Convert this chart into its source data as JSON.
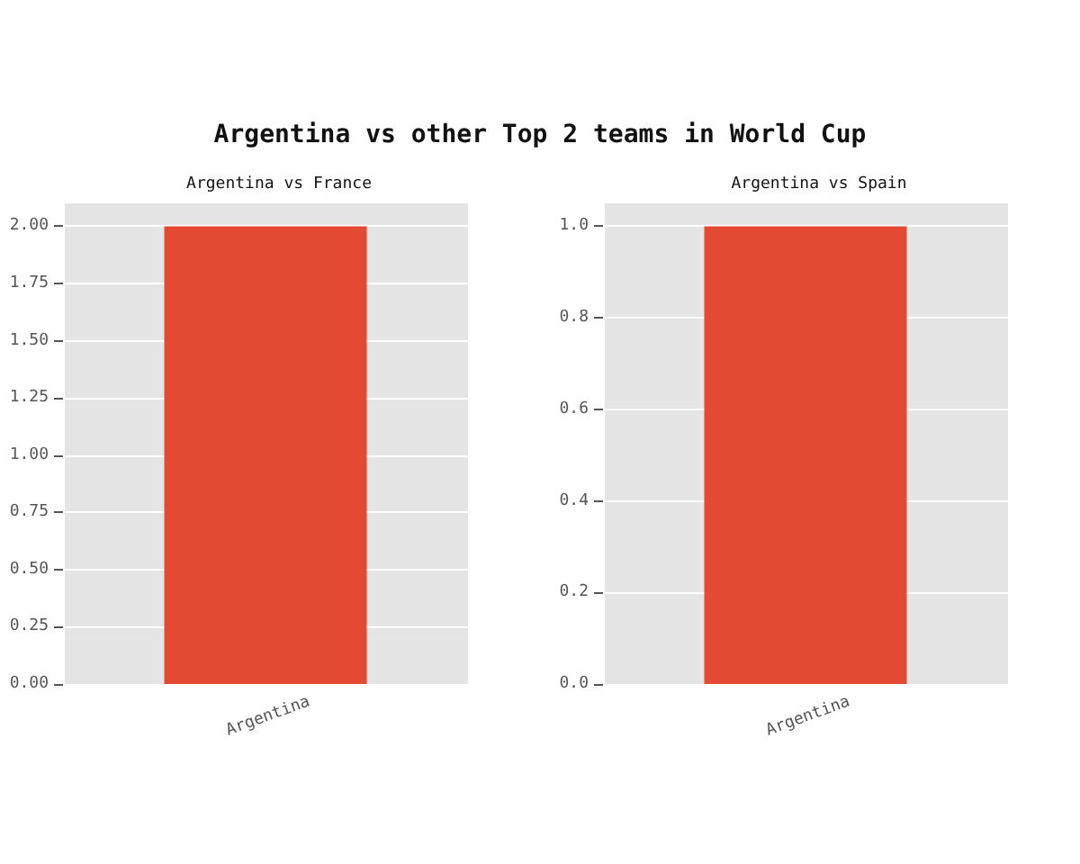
{
  "chart_data": [
    {
      "type": "bar",
      "title": "Argentina vs France",
      "categories": [
        "Argentina"
      ],
      "values": [
        2
      ],
      "color": "#e24a33",
      "ylim": [
        0,
        2.1
      ],
      "yticks": [
        {
          "value": 0,
          "label": "0.00"
        },
        {
          "value": 0.25,
          "label": "0.25"
        },
        {
          "value": 0.5,
          "label": "0.50"
        },
        {
          "value": 0.75,
          "label": "0.75"
        },
        {
          "value": 1,
          "label": "1.00"
        },
        {
          "value": 1.25,
          "label": "1.25"
        },
        {
          "value": 1.5,
          "label": "1.50"
        },
        {
          "value": 1.75,
          "label": "1.75"
        },
        {
          "value": 2,
          "label": "2.00"
        }
      ],
      "grid": true
    },
    {
      "type": "bar",
      "title": "Argentina vs Spain",
      "categories": [
        "Argentina"
      ],
      "values": [
        1
      ],
      "color": "#e24a33",
      "ylim": [
        0,
        1.05
      ],
      "yticks": [
        {
          "value": 0,
          "label": "0.0"
        },
        {
          "value": 0.2,
          "label": "0.2"
        },
        {
          "value": 0.4,
          "label": "0.4"
        },
        {
          "value": 0.6,
          "label": "0.6"
        },
        {
          "value": 0.8,
          "label": "0.8"
        },
        {
          "value": 1,
          "label": "1.0"
        }
      ],
      "grid": true
    },
    {
      "type": "other",
      "title": "Argentina vs other Top 2 teams in World Cup"
    }
  ]
}
